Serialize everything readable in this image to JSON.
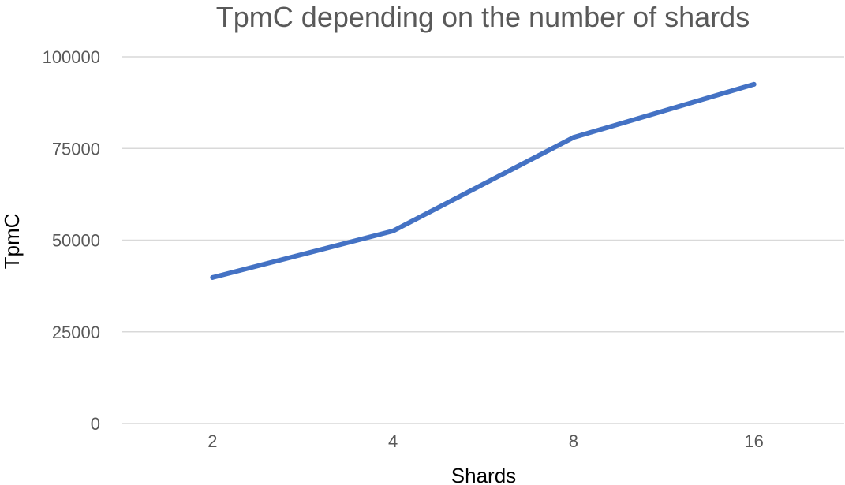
{
  "chart_data": {
    "type": "line",
    "title": "TpmC depending on the number of shards",
    "xlabel": "Shards",
    "ylabel": "TpmC",
    "categories": [
      "2",
      "4",
      "8",
      "16"
    ],
    "series": [
      {
        "values": [
          39800,
          52500,
          78000,
          92500
        ],
        "color": "#4472c4"
      }
    ],
    "ylim": [
      0,
      100000
    ],
    "yticks": [
      "0",
      "25000",
      "50000",
      "75000",
      "100000"
    ],
    "grid": true,
    "legend": "none"
  }
}
